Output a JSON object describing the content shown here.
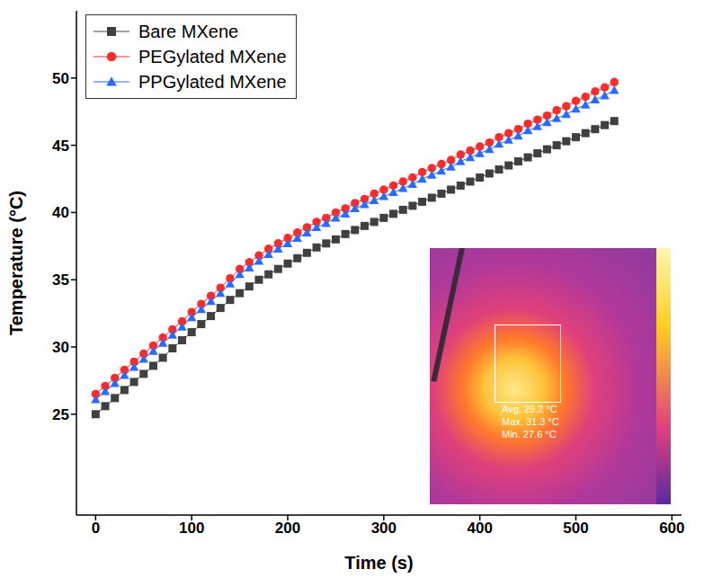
{
  "chart_data": {
    "type": "line",
    "x_label": "Time (s)",
    "y_label": "Temperature (°C)",
    "x": [
      0,
      10,
      20,
      30,
      40,
      50,
      60,
      70,
      80,
      90,
      100,
      110,
      120,
      130,
      140,
      150,
      160,
      170,
      180,
      190,
      200,
      210,
      220,
      230,
      240,
      250,
      260,
      270,
      280,
      290,
      300,
      310,
      320,
      330,
      340,
      350,
      360,
      370,
      380,
      390,
      400,
      410,
      420,
      430,
      440,
      450,
      460,
      470,
      480,
      490,
      500,
      510,
      520,
      530,
      540
    ],
    "series": [
      {
        "name": "Bare MXene",
        "color": "#404040",
        "marker": "square",
        "line_style": "solid",
        "values": [
          25.0,
          25.6,
          26.2,
          26.8,
          27.4,
          28.0,
          28.6,
          29.2,
          29.9,
          30.5,
          31.1,
          31.7,
          32.3,
          32.9,
          33.5,
          34.0,
          34.5,
          35.0,
          35.4,
          35.8,
          36.2,
          36.6,
          37.0,
          37.4,
          37.7,
          38.0,
          38.4,
          38.7,
          39.0,
          39.3,
          39.6,
          39.9,
          40.2,
          40.5,
          40.8,
          41.1,
          41.4,
          41.7,
          42.0,
          42.3,
          42.6,
          42.9,
          43.2,
          43.5,
          43.8,
          44.1,
          44.4,
          44.7,
          45.0,
          45.3,
          45.6,
          45.9,
          46.2,
          46.5,
          46.8
        ]
      },
      {
        "name": "PEGylated MXene",
        "color": "#ff2a2a",
        "marker": "circle",
        "line_style": "solid",
        "values": [
          26.5,
          27.1,
          27.7,
          28.3,
          28.9,
          29.5,
          30.1,
          30.7,
          31.3,
          31.9,
          32.6,
          33.2,
          33.8,
          34.4,
          35.1,
          35.8,
          36.3,
          36.8,
          37.3,
          37.7,
          38.1,
          38.5,
          38.9,
          39.3,
          39.6,
          40.0,
          40.3,
          40.7,
          41.0,
          41.4,
          41.7,
          42.0,
          42.3,
          42.6,
          43.0,
          43.3,
          43.6,
          43.9,
          44.3,
          44.6,
          44.9,
          45.2,
          45.6,
          45.9,
          46.2,
          46.6,
          46.9,
          47.2,
          47.6,
          47.9,
          48.3,
          48.6,
          49.0,
          49.3,
          49.7
        ]
      },
      {
        "name": "PPGylated MXene",
        "color": "#2a6bff",
        "marker": "triangle",
        "line_style": "solid",
        "values": [
          26.1,
          26.7,
          27.3,
          27.9,
          28.5,
          29.1,
          29.7,
          30.3,
          30.9,
          31.5,
          32.2,
          32.8,
          33.4,
          34.0,
          34.7,
          35.4,
          35.9,
          36.4,
          36.9,
          37.3,
          37.7,
          38.1,
          38.5,
          38.9,
          39.2,
          39.6,
          39.9,
          40.3,
          40.6,
          40.9,
          41.2,
          41.5,
          41.8,
          42.1,
          42.5,
          42.8,
          43.1,
          43.4,
          43.8,
          44.1,
          44.4,
          44.7,
          45.1,
          45.4,
          45.7,
          46.1,
          46.4,
          46.7,
          47.0,
          47.3,
          47.7,
          48.0,
          48.4,
          48.7,
          49.1
        ]
      }
    ],
    "xlim": [
      -20,
      610
    ],
    "ylim": [
      17.5,
      55
    ],
    "xticks": [
      0,
      100,
      200,
      300,
      400,
      500,
      600
    ],
    "yticks": [
      25,
      30,
      35,
      40,
      45,
      50
    ],
    "grid": false,
    "legend": "upper left",
    "annotations": [
      "Avg. 29.2 °C",
      "Max. 31.3 °C",
      "Min. 27.6 °C"
    ]
  }
}
